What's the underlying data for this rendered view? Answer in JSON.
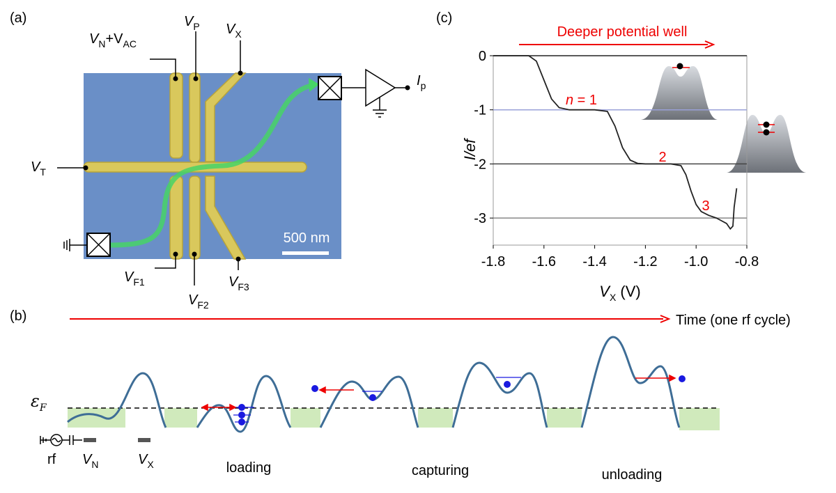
{
  "panel_a": {
    "label": "(a)",
    "gate_vn": {
      "main": "V",
      "sub": "N",
      "main2": "+V",
      "sub2": "AC"
    },
    "gate_vp": {
      "main": "V",
      "sub": "P"
    },
    "gate_vx": {
      "main": "V",
      "sub": "X"
    },
    "gate_vt": {
      "main": "V",
      "sub": "T"
    },
    "gate_vf1": {
      "main": "V",
      "sub": "F1"
    },
    "gate_vf2": {
      "main": "V",
      "sub": "F2"
    },
    "gate_vf3": {
      "main": "V",
      "sub": "F3"
    },
    "current": {
      "main": "I",
      "sub": "p"
    },
    "scale_bar": "500 nm"
  },
  "panel_b": {
    "label": "(b)",
    "time_axis": "Time (one rf cycle)",
    "fermi": {
      "main": "ε",
      "sub": "F"
    },
    "rf": "rf",
    "vn": {
      "main": "V",
      "sub": "N"
    },
    "vx": {
      "main": "V",
      "sub": "X"
    },
    "stages": [
      "loading",
      "capturing",
      "unloading"
    ]
  },
  "chart_data": {
    "type": "line",
    "label": "(c)",
    "title": "Deeper potential well",
    "ylabel": "I/ef",
    "xlabel": {
      "main": "V",
      "sub": "X",
      "rest": " (V)"
    },
    "x": [
      -1.8,
      -1.66,
      -1.63,
      -1.6,
      -1.57,
      -1.54,
      -1.5,
      -1.4,
      -1.35,
      -1.32,
      -1.29,
      -1.26,
      -1.23,
      -1.2,
      -1.1,
      -1.06,
      -1.04,
      -1.02,
      -1.0,
      -0.98,
      -0.95,
      -0.92,
      -0.9,
      -0.88,
      -0.865,
      -0.855,
      -0.85,
      -0.84
    ],
    "values": [
      0,
      0,
      -0.1,
      -0.45,
      -0.8,
      -0.96,
      -1.0,
      -1.0,
      -1.03,
      -1.3,
      -1.7,
      -1.93,
      -1.99,
      -2.0,
      -2.0,
      -2.03,
      -2.2,
      -2.5,
      -2.75,
      -2.88,
      -2.95,
      -3.0,
      -3.05,
      -3.1,
      -3.2,
      -3.15,
      -2.8,
      -2.45
    ],
    "color": "#222",
    "xlim": [
      -1.8,
      -0.8
    ],
    "xticks": [
      -1.8,
      -1.6,
      -1.4,
      -1.2,
      {
        "value": -1,
        "label": "-1.0"
      },
      -0.8
    ],
    "ylim": [
      -3.5,
      0
    ],
    "yticks": [
      -3,
      -2,
      -1,
      0
    ],
    "grid": true,
    "grid_colors": [
      "#888",
      "#444",
      "#99a0d8",
      "#222"
    ],
    "annotations": [
      {
        "main": "n",
        "rest": " = 1"
      },
      "2",
      "3"
    ]
  }
}
